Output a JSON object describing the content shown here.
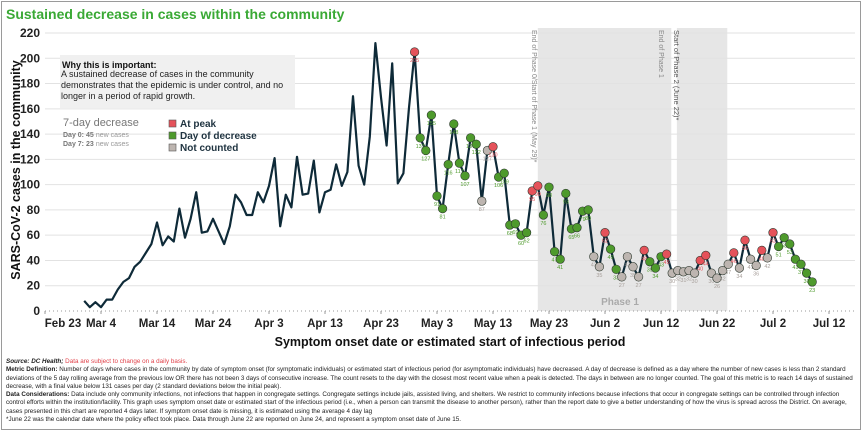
{
  "title": "Sustained decrease in cases within the community",
  "info_box": {
    "heading": "Why this is important:",
    "body": "A sustained decrease of cases in the community demonstrates that the epidemic is under control, and no longer in a period of rapid growth."
  },
  "summary": {
    "title": "7-day decrease",
    "day0_label": "Day 0:",
    "day0_value": "45",
    "day0_suffix": "new cases",
    "day7_label": "Day 7:",
    "day7_value": "23",
    "day7_suffix": "new cases"
  },
  "colors": {
    "line": "#0e2a38",
    "peak": "#e5525a",
    "decrease": "#4e9a2c",
    "not_counted": "#bdb5b0",
    "phase_band": "#e6e6e6",
    "title": "#3aa935"
  },
  "annotations": {
    "phase0_end": "End of Phase 0/Start of Phase 1 (May 29)*",
    "phase1_end": "End of Phase 1",
    "phase2_start": "Start of Phase 2 (June 22)*",
    "phase1_label": "Phase 1"
  },
  "chart_data": {
    "type": "line",
    "xlabel": "Symptom onset date or estimated start of infectious period",
    "ylabel": "SARS-CoV-2 cases in the community",
    "ylim": [
      0,
      220
    ],
    "yticks": [
      0,
      20,
      40,
      60,
      80,
      100,
      120,
      140,
      160,
      180,
      200,
      220
    ],
    "xticks": [
      "Feb 23",
      "Mar 4",
      "Mar 14",
      "Mar 24",
      "Apr 3",
      "Apr 13",
      "Apr 23",
      "May 3",
      "May 13",
      "May 23",
      "Jun 2",
      "Jun 12",
      "Jun 22",
      "Jul 2",
      "Jul 12"
    ],
    "grid": "horizontal",
    "legend": {
      "placement": "top-left",
      "items": [
        {
          "key": "P",
          "label": "At peak",
          "color": "#e5525a"
        },
        {
          "key": "D",
          "label": "Day of decrease",
          "color": "#4e9a2c"
        },
        {
          "key": "N",
          "label": "Not counted",
          "color": "#bdb5b0"
        }
      ]
    },
    "x": [
      "2020-03-01",
      "2020-03-02",
      "2020-03-03",
      "2020-03-04",
      "2020-03-05",
      "2020-03-06",
      "2020-03-07",
      "2020-03-08",
      "2020-03-09",
      "2020-03-10",
      "2020-03-11",
      "2020-03-12",
      "2020-03-13",
      "2020-03-14",
      "2020-03-15",
      "2020-03-16",
      "2020-03-17",
      "2020-03-18",
      "2020-03-19",
      "2020-03-20",
      "2020-03-21",
      "2020-03-22",
      "2020-03-23",
      "2020-03-24",
      "2020-03-25",
      "2020-03-26",
      "2020-03-27",
      "2020-03-28",
      "2020-03-29",
      "2020-03-30",
      "2020-03-31",
      "2020-04-01",
      "2020-04-02",
      "2020-04-03",
      "2020-04-04",
      "2020-04-05",
      "2020-04-06",
      "2020-04-07",
      "2020-04-08",
      "2020-04-09",
      "2020-04-10",
      "2020-04-11",
      "2020-04-12",
      "2020-04-13",
      "2020-04-14",
      "2020-04-15",
      "2020-04-16",
      "2020-04-17",
      "2020-04-18",
      "2020-04-19",
      "2020-04-20",
      "2020-04-21",
      "2020-04-22",
      "2020-04-23",
      "2020-04-24",
      "2020-04-25",
      "2020-04-26",
      "2020-04-27",
      "2020-04-28",
      "2020-04-29",
      "2020-04-30",
      "2020-05-01",
      "2020-05-02",
      "2020-05-03",
      "2020-05-04",
      "2020-05-05",
      "2020-05-06",
      "2020-05-07",
      "2020-05-08",
      "2020-05-09",
      "2020-05-10",
      "2020-05-11",
      "2020-05-12",
      "2020-05-13",
      "2020-05-14",
      "2020-05-15",
      "2020-05-16",
      "2020-05-17",
      "2020-05-18",
      "2020-05-19",
      "2020-05-20",
      "2020-05-21",
      "2020-05-22",
      "2020-05-23",
      "2020-05-24",
      "2020-05-25",
      "2020-05-26",
      "2020-05-27",
      "2020-05-28",
      "2020-05-29",
      "2020-05-30",
      "2020-05-31",
      "2020-06-01",
      "2020-06-02",
      "2020-06-03",
      "2020-06-04",
      "2020-06-05",
      "2020-06-06",
      "2020-06-07",
      "2020-06-08",
      "2020-06-09",
      "2020-06-10",
      "2020-06-11",
      "2020-06-12",
      "2020-06-13",
      "2020-06-14",
      "2020-06-15",
      "2020-06-16",
      "2020-06-17",
      "2020-06-18",
      "2020-06-19",
      "2020-06-20",
      "2020-06-21",
      "2020-06-22",
      "2020-06-23",
      "2020-06-24",
      "2020-06-25",
      "2020-06-26",
      "2020-06-27",
      "2020-06-28",
      "2020-06-29",
      "2020-06-30",
      "2020-07-01",
      "2020-07-02",
      "2020-07-03",
      "2020-07-04",
      "2020-07-05",
      "2020-07-06",
      "2020-07-07",
      "2020-07-08",
      "2020-07-09"
    ],
    "values": [
      8,
      3,
      7,
      3,
      9,
      9,
      17,
      23,
      26,
      35,
      39,
      46,
      53,
      70,
      52,
      59,
      55,
      81,
      58,
      73,
      94,
      62,
      63,
      73,
      63,
      53,
      67,
      92,
      86,
      76,
      76,
      94,
      86,
      99,
      121,
      67,
      92,
      82,
      122,
      92,
      93,
      119,
      78,
      94,
      96,
      116,
      99,
      110,
      170,
      115,
      100,
      138,
      212,
      169,
      131,
      196,
      101,
      109,
      161,
      205,
      137,
      127,
      155,
      91,
      81,
      116,
      148,
      117,
      107,
      137,
      132,
      87,
      127,
      130,
      106,
      109,
      68,
      69,
      60,
      62,
      95,
      99,
      76,
      98,
      47,
      41,
      93,
      65,
      66,
      79,
      80,
      43,
      35,
      62,
      49,
      33,
      27,
      43,
      35,
      27,
      48,
      39,
      34,
      43,
      45,
      30,
      32,
      31,
      32,
      30,
      40,
      44,
      30,
      26,
      32,
      37,
      46,
      34,
      56,
      41,
      36,
      48,
      42,
      62,
      51,
      58,
      53,
      41,
      37,
      30,
      23
    ],
    "status": [
      "",
      "",
      "",
      "",
      "",
      "",
      "",
      "",
      "",
      "",
      "",
      "",
      "",
      "",
      "",
      "",
      "",
      "",
      "",
      "",
      "",
      "",
      "",
      "",
      "",
      "",
      "",
      "",
      "",
      "",
      "",
      "",
      "",
      "",
      "",
      "",
      "",
      "",
      "",
      "",
      "",
      "",
      "",
      "",
      "",
      "",
      "",
      "",
      "",
      "",
      "",
      "",
      "",
      "",
      "",
      "",
      "",
      "",
      "",
      "P",
      "D",
      "D",
      "D",
      "D",
      "D",
      "D",
      "D",
      "D",
      "D",
      "D",
      "D",
      "N",
      "N",
      "P",
      "D",
      "D",
      "D",
      "D",
      "D",
      "D",
      "P",
      "P",
      "D",
      "D",
      "D",
      "D",
      "D",
      "D",
      "D",
      "D",
      "D",
      "N",
      "N",
      "P",
      "D",
      "D",
      "N",
      "N",
      "N",
      "N",
      "P",
      "D",
      "D",
      "D",
      "P",
      "N",
      "N",
      "N",
      "N",
      "N",
      "P",
      "P",
      "N",
      "N",
      "N",
      "N",
      "P",
      "N",
      "P",
      "N",
      "N",
      "P",
      "N",
      "P",
      "D",
      "D",
      "D",
      "D",
      "D",
      "D",
      "D"
    ]
  },
  "footer": {
    "source_label": "Source: DC Health;",
    "source_note": "Data are subject to change on a daily basis.",
    "metric_label": "Metric Definition:",
    "metric_text": "Number of days where cases in the community by date of symptom onset (for symptomatic individuals) or estimated start of infectious period (for asymptomatic individuals) have decreased. A day of decrease is defined as a day where the number of new cases is less than 2 standard deviations of the 5 day rolling average from the previous low OR there has not been 3 days of consecutive increase. The count resets to the day with the closest most recent value when a peak is detected. The days in between are no longer counted. The goal of this metric is to reach 14 days of sustained decrease, with a final value below 131 cases per day (2 standard deviations below the initial peak).",
    "data_label": "Data Considerations:",
    "data_text": "Data include only community infections, not infections that happen in congregate settings. Congregate settings include jails, assisted living, and shelters. We restrict to community infections because infections that occur in congregate settings can be controlled through infection control efforts within the institution/facility. This graph uses symptom onset date or estimated start of the infectious period (i.e., when a person can transmit the disease to another person), rather than the report date to give a better understanding of how the virus is spread across the District. On average, cases presented in this chart are reported 4 days later. If symptom onset date is missing, it is estimated using the average 4 day lag",
    "note": "*June 22 was the calendar date where the policy effect took place. Data through June 22 are reported on June 24, and represent a symptom onset date of June 15."
  }
}
